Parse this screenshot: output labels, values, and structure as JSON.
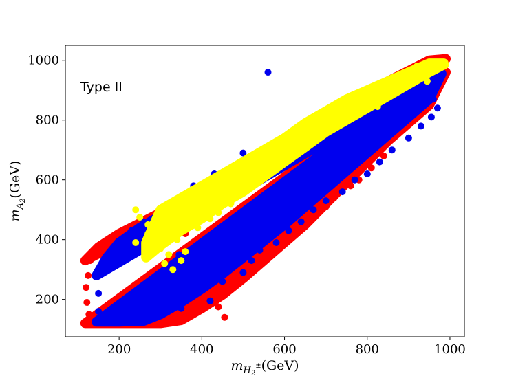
{
  "chart_data": {
    "type": "scatter",
    "title": "",
    "annotation": "Type II",
    "xlabel": {
      "main": "m",
      "sub": "H",
      "sub2": "2",
      "sup": "±",
      "rest": "(GeV)"
    },
    "ylabel": {
      "main": "m",
      "sub": "A",
      "sub2": "2",
      "rest": "(GeV)"
    },
    "xlim": [
      70,
      1035
    ],
    "ylim": [
      75,
      1050
    ],
    "xticks": [
      200,
      400,
      600,
      800,
      1000
    ],
    "yticks": [
      200,
      400,
      600,
      800,
      1000
    ],
    "xtick_labels": [
      "200",
      "400",
      "600",
      "800",
      "1000"
    ],
    "ytick_labels": [
      "200",
      "400",
      "600",
      "800",
      "1000"
    ],
    "grid": false,
    "legend": "none",
    "series": [
      {
        "color": "#ff0000",
        "region": {
          "upper": [
            [
              118,
              330
            ],
            [
              150,
              375
            ],
            [
              200,
              420
            ],
            [
              250,
              455
            ],
            [
              300,
              490
            ],
            [
              350,
              530
            ],
            [
              400,
              570
            ],
            [
              450,
              610
            ],
            [
              500,
              650
            ],
            [
              550,
              690
            ],
            [
              600,
              730
            ],
            [
              650,
              770
            ],
            [
              700,
              810
            ],
            [
              750,
              850
            ],
            [
              800,
              890
            ],
            [
              850,
              930
            ],
            [
              900,
              965
            ],
            [
              950,
              1000
            ],
            [
              990,
              1005
            ]
          ],
          "lower": [
            [
              118,
              120
            ],
            [
              200,
              120
            ],
            [
              300,
              120
            ],
            [
              350,
              130
            ],
            [
              400,
              170
            ],
            [
              450,
              215
            ],
            [
              500,
              270
            ],
            [
              550,
              330
            ],
            [
              600,
              390
            ],
            [
              650,
              450
            ],
            [
              700,
              520
            ],
            [
              750,
              590
            ],
            [
              800,
              660
            ],
            [
              850,
              730
            ],
            [
              900,
              790
            ],
            [
              950,
              850
            ],
            [
              990,
              960
            ]
          ]
        },
        "points": [
          [
            455,
            140
          ],
          [
            440,
            175
          ],
          [
            430,
            210
          ],
          [
            470,
            245
          ],
          [
            490,
            280
          ],
          [
            520,
            300
          ],
          [
            550,
            330
          ],
          [
            570,
            360
          ],
          [
            590,
            390
          ],
          [
            620,
            420
          ],
          [
            640,
            450
          ],
          [
            660,
            480
          ],
          [
            700,
            510
          ],
          [
            720,
            540
          ],
          [
            760,
            580
          ],
          [
            780,
            600
          ],
          [
            810,
            640
          ],
          [
            840,
            680
          ],
          [
            130,
            330
          ],
          [
            125,
            280
          ],
          [
            120,
            240
          ],
          [
            122,
            190
          ],
          [
            127,
            150
          ],
          [
            300,
            130
          ],
          [
            350,
            140
          ],
          [
            380,
            160
          ],
          [
            395,
            185
          ],
          [
            385,
            225
          ],
          [
            360,
            420
          ],
          [
            420,
            500
          ],
          [
            480,
            560
          ],
          [
            540,
            620
          ],
          [
            600,
            700
          ],
          [
            660,
            760
          ],
          [
            720,
            820
          ],
          [
            780,
            870
          ],
          [
            860,
            940
          ],
          [
            920,
            975
          ],
          [
            965,
            1000
          ],
          [
            990,
            995
          ]
        ]
      },
      {
        "color": "#0000ee",
        "region": {
          "upper": [
            [
              145,
              280
            ],
            [
              170,
              340
            ],
            [
              200,
              390
            ],
            [
              250,
              440
            ],
            [
              300,
              480
            ],
            [
              350,
              520
            ],
            [
              400,
              560
            ],
            [
              450,
              600
            ],
            [
              500,
              645
            ],
            [
              550,
              685
            ],
            [
              600,
              725
            ],
            [
              650,
              765
            ],
            [
              700,
              805
            ],
            [
              750,
              845
            ],
            [
              800,
              880
            ],
            [
              850,
              920
            ],
            [
              900,
              955
            ],
            [
              950,
              985
            ],
            [
              980,
              985
            ]
          ],
          "lower": [
            [
              145,
              125
            ],
            [
              200,
              125
            ],
            [
              260,
              128
            ],
            [
              300,
              150
            ],
            [
              350,
              190
            ],
            [
              400,
              235
            ],
            [
              450,
              285
            ],
            [
              500,
              340
            ],
            [
              550,
              395
            ],
            [
              600,
              450
            ],
            [
              650,
              510
            ],
            [
              700,
              570
            ],
            [
              750,
              630
            ],
            [
              800,
              690
            ],
            [
              850,
              750
            ],
            [
              900,
              810
            ],
            [
              950,
              870
            ],
            [
              980,
              955
            ]
          ]
        },
        "points": [
          [
            420,
            195
          ],
          [
            450,
            260
          ],
          [
            465,
            310
          ],
          [
            500,
            290
          ],
          [
            520,
            330
          ],
          [
            540,
            365
          ],
          [
            580,
            390
          ],
          [
            610,
            430
          ],
          [
            640,
            460
          ],
          [
            670,
            500
          ],
          [
            700,
            530
          ],
          [
            740,
            560
          ],
          [
            770,
            600
          ],
          [
            800,
            620
          ],
          [
            830,
            660
          ],
          [
            860,
            700
          ],
          [
            900,
            740
          ],
          [
            930,
            780
          ],
          [
            955,
            810
          ],
          [
            970,
            840
          ],
          [
            960,
            870
          ],
          [
            945,
            900
          ],
          [
            975,
            930
          ],
          [
            950,
            965
          ],
          [
            560,
            960
          ],
          [
            500,
            690
          ],
          [
            430,
            620
          ],
          [
            380,
            580
          ],
          [
            320,
            520
          ],
          [
            260,
            460
          ],
          [
            230,
            430
          ],
          [
            150,
            220
          ],
          [
            150,
            160
          ],
          [
            345,
            350
          ],
          [
            330,
            300
          ],
          [
            310,
            270
          ],
          [
            360,
            330
          ],
          [
            400,
            380
          ],
          [
            380,
            235
          ],
          [
            350,
            170
          ]
        ]
      },
      {
        "color": "#ffff00",
        "region": {
          "upper": [
            [
              265,
              390
            ],
            [
              300,
              500
            ],
            [
              350,
              540
            ],
            [
              400,
              580
            ],
            [
              450,
              620
            ],
            [
              500,
              660
            ],
            [
              550,
              700
            ],
            [
              600,
              740
            ],
            [
              650,
              790
            ],
            [
              700,
              830
            ],
            [
              750,
              870
            ],
            [
              800,
              900
            ],
            [
              850,
              930
            ],
            [
              900,
              960
            ],
            [
              950,
              990
            ],
            [
              985,
              990
            ]
          ],
          "lower": [
            [
              985,
              985
            ],
            [
              950,
              960
            ],
            [
              900,
              920
            ],
            [
              850,
              880
            ],
            [
              800,
              840
            ],
            [
              750,
              800
            ],
            [
              700,
              760
            ],
            [
              650,
              710
            ],
            [
              600,
              660
            ],
            [
              550,
              610
            ],
            [
              500,
              560
            ],
            [
              450,
              520
            ],
            [
              400,
              470
            ],
            [
              350,
              430
            ],
            [
              300,
              380
            ],
            [
              265,
              340
            ]
          ]
        },
        "points": [
          [
            240,
            390
          ],
          [
            270,
            420
          ],
          [
            290,
            440
          ],
          [
            310,
            410
          ],
          [
            330,
            420
          ],
          [
            340,
            400
          ],
          [
            300,
            370
          ],
          [
            320,
            350
          ],
          [
            280,
            360
          ],
          [
            310,
            320
          ],
          [
            330,
            300
          ],
          [
            350,
            330
          ],
          [
            360,
            360
          ],
          [
            240,
            500
          ],
          [
            250,
            475
          ],
          [
            270,
            450
          ],
          [
            300,
            470
          ],
          [
            390,
            440
          ],
          [
            420,
            470
          ],
          [
            440,
            490
          ],
          [
            470,
            520
          ],
          [
            480,
            560
          ],
          [
            500,
            590
          ],
          [
            530,
            610
          ],
          [
            560,
            640
          ],
          [
            600,
            670
          ],
          [
            620,
            700
          ],
          [
            650,
            720
          ],
          [
            680,
            750
          ],
          [
            700,
            780
          ],
          [
            720,
            800
          ],
          [
            760,
            830
          ],
          [
            780,
            850
          ],
          [
            810,
            870
          ],
          [
            840,
            900
          ],
          [
            870,
            930
          ],
          [
            900,
            950
          ],
          [
            920,
            980
          ],
          [
            950,
            990
          ],
          [
            960,
            975
          ],
          [
            970,
            985
          ],
          [
            990,
            985
          ],
          [
            945,
            930
          ],
          [
            825,
            845
          ]
        ]
      }
    ]
  }
}
